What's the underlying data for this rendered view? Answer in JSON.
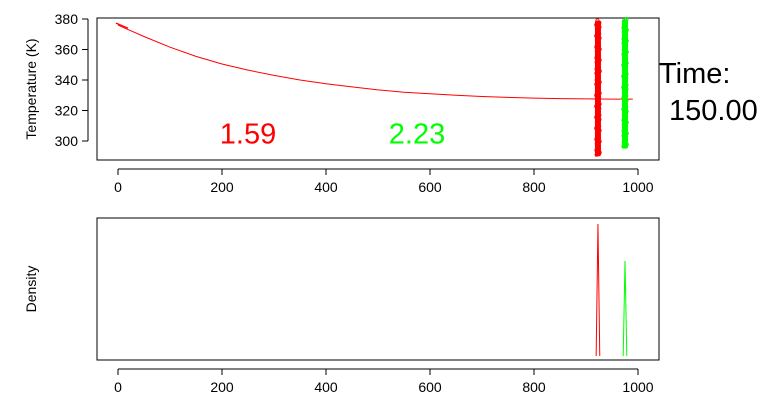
{
  "colors": {
    "red": "#ff0000",
    "green": "#00ff00",
    "axis": "#000000"
  },
  "time": {
    "label": "Time:",
    "value": "150.00"
  },
  "chart_data": [
    {
      "type": "scatter",
      "title": "",
      "xlabel": "",
      "ylabel": "Temperature (K)",
      "xlim": [
        0,
        1000
      ],
      "ylim": [
        290,
        380
      ],
      "x_ticks": [
        0,
        200,
        400,
        600,
        800,
        1000
      ],
      "y_ticks": [
        300,
        320,
        340,
        360,
        380
      ],
      "grid": false,
      "legend": "none",
      "curve": {
        "x": [
          0,
          20,
          50,
          100,
          150,
          200,
          250,
          300,
          350,
          400,
          450,
          500,
          550,
          600,
          650,
          700,
          750,
          800,
          850,
          900,
          950,
          990
        ],
        "y": [
          376,
          373,
          368.5,
          361.5,
          355.5,
          350.5,
          346.5,
          343,
          340,
          337.5,
          335.5,
          333.5,
          332,
          331,
          330,
          329.2,
          328.6,
          328.1,
          327.8,
          327.6,
          327.5,
          327.5
        ],
        "color": "#ff0000"
      },
      "series": [
        {
          "x": 923,
          "y_range": [
            290,
            379
          ],
          "color": "#ff0000"
        },
        {
          "x": 975,
          "y_range": [
            295,
            380
          ],
          "color": "#00ff00"
        }
      ],
      "annotations": [
        {
          "text": "1.59",
          "x": 250,
          "y": 305,
          "color": "#ff0000"
        },
        {
          "text": "2.23",
          "x": 575,
          "y": 305,
          "color": "#00ff00"
        }
      ]
    },
    {
      "type": "line",
      "title": "",
      "xlabel": "",
      "ylabel": "Density",
      "xlim": [
        0,
        1000
      ],
      "ylim": [
        0,
        1
      ],
      "x_ticks": [
        0,
        200,
        400,
        600,
        800,
        1000
      ],
      "grid": false,
      "legend": "none",
      "series": [
        {
          "x": 923,
          "peak": 1.0,
          "color": "#ff0000"
        },
        {
          "x": 975,
          "peak": 0.72,
          "color": "#00ff00"
        }
      ]
    }
  ]
}
